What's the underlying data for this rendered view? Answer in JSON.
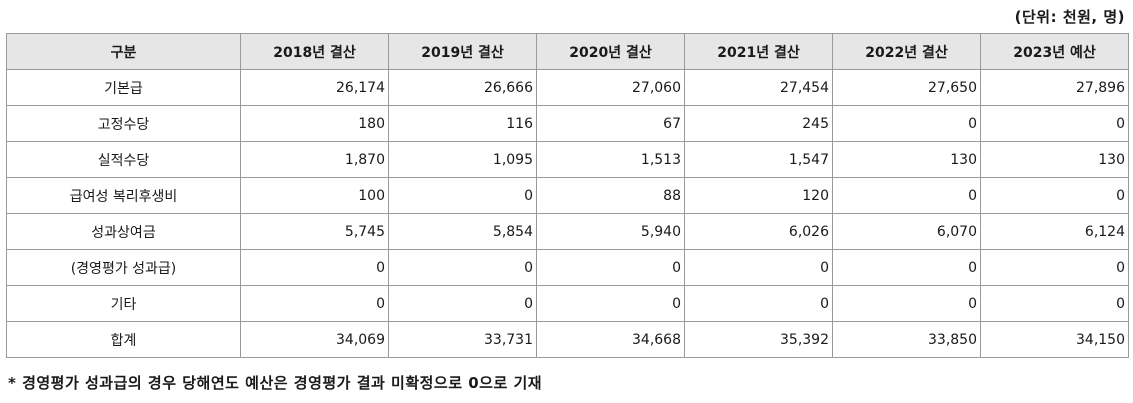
{
  "unit_label": "(단위: 천원, 명)",
  "table": {
    "headers": [
      "구분",
      "2018년 결산",
      "2019년 결산",
      "2020년 결산",
      "2021년 결산",
      "2022년 결산",
      "2023년 예산"
    ],
    "rows": [
      {
        "label": "기본급",
        "values": [
          "26,174",
          "26,666",
          "27,060",
          "27,454",
          "27,650",
          "27,896"
        ]
      },
      {
        "label": "고정수당",
        "values": [
          "180",
          "116",
          "67",
          "245",
          "0",
          "0"
        ]
      },
      {
        "label": "실적수당",
        "values": [
          "1,870",
          "1,095",
          "1,513",
          "1,547",
          "130",
          "130"
        ]
      },
      {
        "label": "급여성 복리후생비",
        "values": [
          "100",
          "0",
          "88",
          "120",
          "0",
          "0"
        ]
      },
      {
        "label": "성과상여금",
        "values": [
          "5,745",
          "5,854",
          "5,940",
          "6,026",
          "6,070",
          "6,124"
        ]
      },
      {
        "label": "(경영평가 성과급)",
        "values": [
          "0",
          "0",
          "0",
          "0",
          "0",
          "0"
        ]
      },
      {
        "label": "기타",
        "values": [
          "0",
          "0",
          "0",
          "0",
          "0",
          "0"
        ]
      },
      {
        "label": "합계",
        "values": [
          "34,069",
          "33,731",
          "34,668",
          "35,392",
          "33,850",
          "34,150"
        ]
      }
    ]
  },
  "footnote": "* 경영평가 성과급의 경우 당해연도 예산은 경영평가 결과 미확정으로 0으로 기재"
}
